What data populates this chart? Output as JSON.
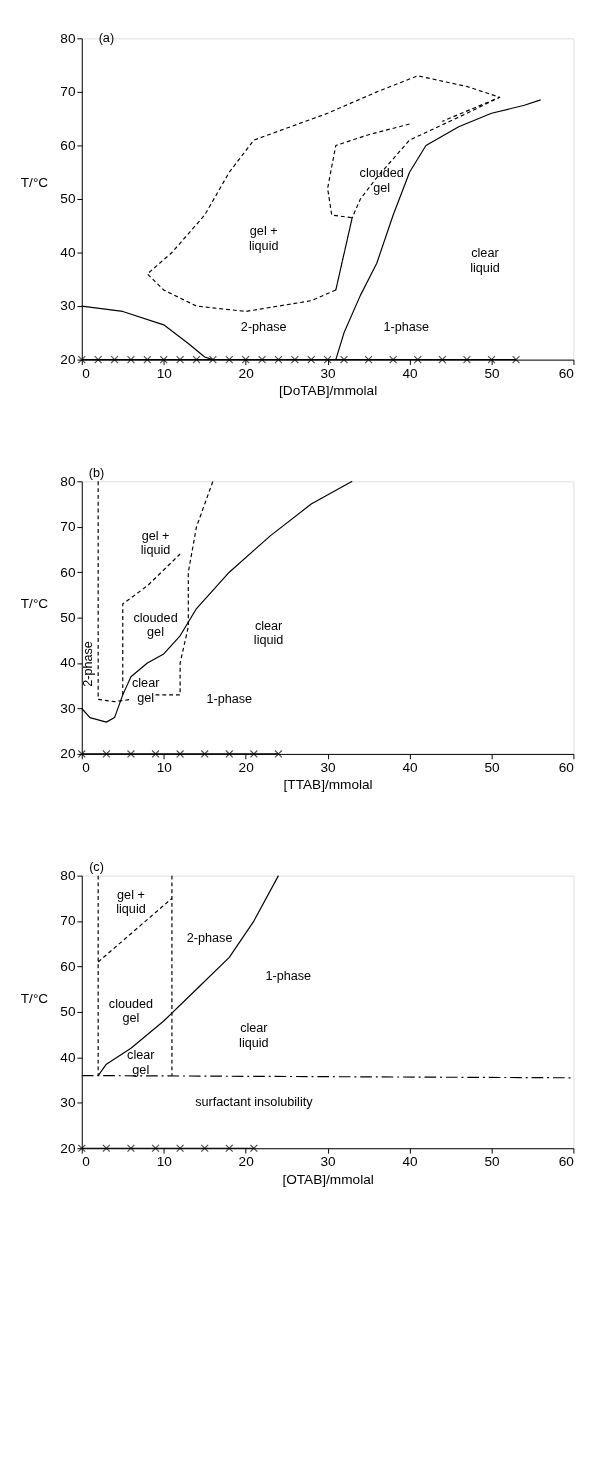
{
  "chart_data": [
    {
      "type": "line",
      "xlabel": "[DoTAB]/mmolal",
      "ylabel": "T/°C",
      "xlim": [
        0,
        60
      ],
      "ylim": [
        20,
        80
      ],
      "xticks": [
        0,
        10,
        20,
        30,
        40,
        50,
        60
      ],
      "yticks": [
        20,
        30,
        40,
        50,
        60,
        70,
        80
      ],
      "grid": false,
      "series": [
        {
          "color": "#000000",
          "line_style": "solid",
          "x": [
            0,
            5,
            10,
            13,
            15,
            16
          ],
          "values": [
            30,
            29,
            26.5,
            23,
            20.5,
            20
          ]
        },
        {
          "color": "#000000",
          "line_style": "solid",
          "x": [
            31,
            32,
            34,
            36,
            38,
            40,
            42,
            46,
            50,
            54,
            56
          ],
          "values": [
            20,
            25,
            32,
            38,
            47,
            55,
            60,
            63.5,
            66,
            67.5,
            68.5
          ]
        },
        {
          "color": "#000000",
          "line_style": "dashed",
          "x": [
            31,
            28,
            26,
            20,
            14,
            10,
            8,
            11,
            15,
            18,
            21,
            30,
            36,
            41,
            47,
            51,
            44
          ],
          "values": [
            33,
            31,
            30.5,
            29,
            30,
            33,
            36,
            40,
            47,
            55,
            61,
            66,
            70,
            73,
            71,
            69,
            64.5
          ]
        },
        {
          "color": "#000000",
          "line_style": "dashed",
          "x": [
            40,
            35,
            31,
            30,
            30.5,
            33,
            31,
            33,
            34,
            36,
            40,
            47,
            51
          ],
          "values": [
            64,
            62,
            60,
            52,
            47,
            46.5,
            33,
            46.5,
            50,
            54,
            61,
            66,
            69
          ]
        },
        {
          "color": "#000000",
          "line_style": "solid",
          "marker": "cross",
          "x": [
            0,
            2,
            4,
            6,
            8,
            10,
            12,
            14,
            16,
            18,
            20,
            22,
            24,
            26,
            28,
            30,
            32,
            35,
            38,
            41,
            44,
            47,
            50,
            53
          ],
          "values": [
            20,
            20,
            20,
            20,
            20,
            20,
            20,
            20,
            20,
            20,
            20,
            20,
            20,
            20,
            20,
            20,
            20,
            20,
            20,
            20,
            20,
            20,
            20,
            20
          ]
        }
      ],
      "annotations": [
        "(a)",
        "gel +\nliquid",
        "clouded\ngel",
        "clear\nliquid",
        "2-phase",
        "1-phase"
      ]
    },
    {
      "type": "line",
      "xlabel": "[TTAB]/mmolal",
      "ylabel": "T/°C",
      "xlim": [
        0,
        60
      ],
      "ylim": [
        20,
        80
      ],
      "xticks": [
        0,
        10,
        20,
        30,
        40,
        50,
        60
      ],
      "yticks": [
        20,
        30,
        40,
        50,
        60,
        70,
        80
      ],
      "grid": false,
      "series": [
        {
          "color": "#000000",
          "line_style": "solid",
          "x": [
            0,
            1,
            3,
            4,
            5,
            6,
            8,
            10,
            12,
            14,
            18,
            23,
            28,
            33
          ],
          "values": [
            30,
            28,
            27,
            28,
            33,
            37,
            40,
            42,
            46,
            52,
            60,
            68,
            75,
            80
          ]
        },
        {
          "color": "#000000",
          "line_style": "dashed",
          "x": [
            2,
            2,
            4,
            6
          ],
          "values": [
            80,
            32,
            31.5,
            32
          ]
        },
        {
          "color": "#000000",
          "line_style": "dashed",
          "x": [
            5,
            5,
            8,
            12
          ],
          "values": [
            33,
            53,
            57,
            64
          ]
        },
        {
          "color": "#000000",
          "line_style": "dashed",
          "x": [
            9,
            12,
            12,
            13,
            13,
            14,
            16
          ],
          "values": [
            33,
            33,
            40,
            48,
            60,
            70,
            80
          ]
        },
        {
          "color": "#000000",
          "line_style": "solid",
          "marker": "cross",
          "x": [
            0,
            3,
            6,
            9,
            12,
            15,
            18,
            21,
            24
          ],
          "values": [
            20,
            20,
            20,
            20,
            20,
            20,
            20,
            20,
            20
          ]
        }
      ],
      "annotations": [
        "(b)",
        "gel +\nliquid",
        "clouded\ngel",
        "clear\nliquid",
        "2-phase",
        "clear\ngel",
        "1-phase"
      ]
    },
    {
      "type": "line",
      "xlabel": "[OTAB]/mmolal",
      "ylabel": "T/°C",
      "xlim": [
        0,
        60
      ],
      "ylim": [
        20,
        80
      ],
      "xticks": [
        0,
        10,
        20,
        30,
        40,
        50,
        60
      ],
      "yticks": [
        20,
        30,
        40,
        50,
        60,
        70,
        80
      ],
      "grid": false,
      "series": [
        {
          "color": "#000000",
          "line_style": "solid",
          "x": [
            2,
            3,
            6,
            10,
            14,
            18,
            21,
            24
          ],
          "values": [
            36,
            38.5,
            42,
            48,
            55,
            62,
            70,
            80
          ]
        },
        {
          "color": "#000000",
          "line_style": "dashed",
          "x": [
            2,
            2
          ],
          "values": [
            80,
            36
          ]
        },
        {
          "color": "#000000",
          "line_style": "dashed",
          "x": [
            11,
            11
          ],
          "values": [
            80,
            36
          ]
        },
        {
          "color": "#000000",
          "line_style": "dashed",
          "x": [
            2,
            11
          ],
          "values": [
            61,
            75
          ]
        },
        {
          "color": "#000000",
          "line_style": "dashdot",
          "x": [
            0,
            60
          ],
          "values": [
            36,
            35.5
          ]
        },
        {
          "color": "#000000",
          "line_style": "solid",
          "marker": "cross",
          "x": [
            0,
            3,
            6,
            9,
            12,
            15,
            18,
            21
          ],
          "values": [
            20,
            20,
            20,
            20,
            20,
            20,
            20,
            20
          ]
        }
      ],
      "annotations": [
        "(c)",
        "gel +\nliquid",
        "2-phase",
        "1-phase",
        "clouded\ngel",
        "clear\nliquid",
        "clear\ngel",
        "surfactant insolubility"
      ]
    }
  ]
}
